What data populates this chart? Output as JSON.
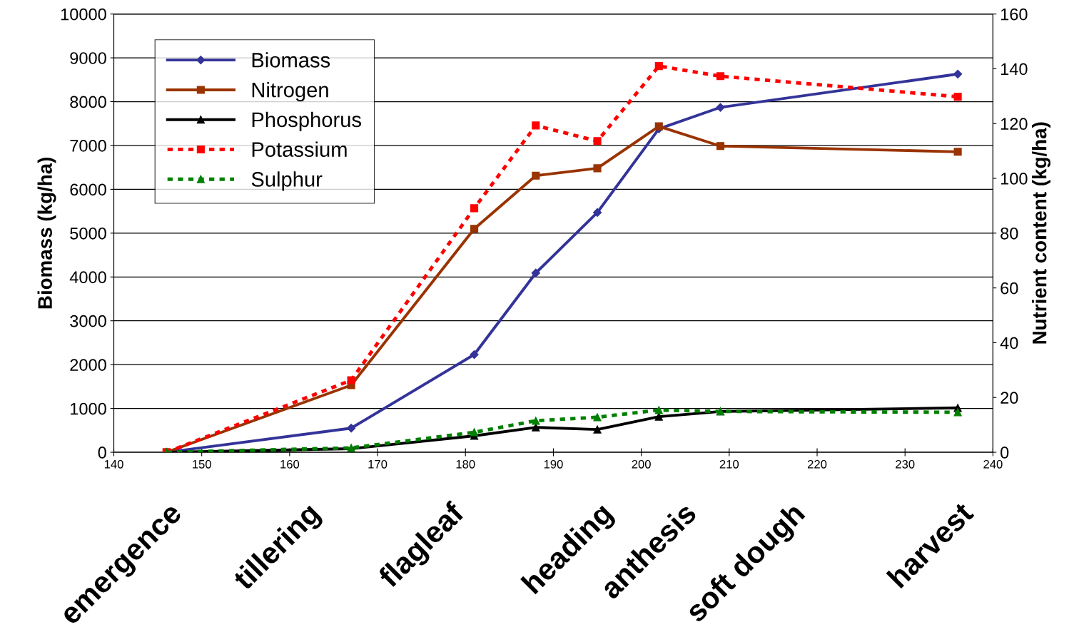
{
  "chart_data": {
    "type": "line",
    "ylabel": "Biomass (kg/ha)",
    "y2label": "Nutrient content (kg/ha)",
    "xlim": [
      140,
      240
    ],
    "xticks": [
      140,
      150,
      160,
      170,
      180,
      190,
      200,
      210,
      220,
      230,
      240
    ],
    "ylim": [
      0,
      10000
    ],
    "yticks": [
      0,
      1000,
      2000,
      3000,
      4000,
      5000,
      6000,
      7000,
      8000,
      9000,
      10000
    ],
    "y2lim": [
      0,
      160
    ],
    "y2ticks": [
      0,
      20,
      40,
      60,
      80,
      100,
      120,
      140,
      160
    ],
    "x": [
      146,
      167,
      181,
      188,
      195,
      202,
      209,
      236
    ],
    "series": [
      {
        "name": "Biomass",
        "color": "#333399",
        "marker": "diamond",
        "line_style": "solid",
        "values": [
          0,
          550,
          2230,
          4090,
          5470,
          7380,
          7870,
          8630
        ]
      },
      {
        "name": "Nitrogen",
        "color": "#993300",
        "marker": "square",
        "line_style": "solid",
        "axis": "y2",
        "values": [
          0,
          24.5,
          81.6,
          101,
          103.7,
          119,
          111.8,
          109.7
        ]
      },
      {
        "name": "Phosphorus",
        "color": "#000000",
        "marker": "triangle",
        "line_style": "solid",
        "axis": "y2",
        "values": [
          0,
          1.3,
          6,
          9.1,
          8.3,
          13,
          14.9,
          16.2
        ]
      },
      {
        "name": "Potassium",
        "color": "#ff0000",
        "marker": "square",
        "line_style": "dotted",
        "axis": "y2",
        "values": [
          0,
          26.3,
          89.1,
          119.3,
          113.6,
          141,
          137.3,
          129.8
        ]
      },
      {
        "name": "Sulphur",
        "color": "#008000",
        "marker": "triangle",
        "line_style": "dotted",
        "axis": "y2",
        "values": [
          0,
          1.6,
          7.3,
          11.5,
          12.8,
          15.4,
          14.9,
          14.6
        ]
      }
    ],
    "annotations": [
      "emergence",
      "tillering",
      "flagleaf",
      "heading",
      "anthesis",
      "soft dough",
      "harvest"
    ],
    "grid": "y",
    "legend": "top left"
  }
}
